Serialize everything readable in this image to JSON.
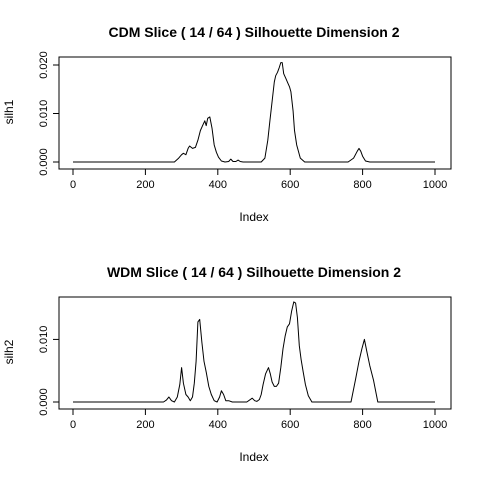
{
  "chart_data": [
    {
      "type": "line",
      "title": "CDM Slice ( 14 / 64 )  Silhouette Dimension 2",
      "xlabel": "Index",
      "ylabel": "silh1",
      "xlim": [
        0,
        1000
      ],
      "ylim": [
        0,
        0.02
      ],
      "xticks": [
        0,
        200,
        400,
        600,
        800,
        1000
      ],
      "yticks": [
        0.0,
        0.01,
        0.02
      ],
      "ytick_labels": [
        "0.000",
        "0.010",
        "0.020"
      ],
      "grid": false,
      "series": [
        {
          "x": [
            0,
            240,
            280,
            292,
            300,
            305,
            312,
            318,
            322,
            330,
            338,
            345,
            352,
            358,
            364,
            368,
            372,
            378,
            384,
            390,
            396,
            402,
            410,
            420,
            430,
            436,
            442,
            450,
            456,
            462,
            470,
            500,
            520,
            530,
            538,
            544,
            550,
            556,
            560,
            565,
            570,
            574,
            578,
            582,
            588,
            594,
            598,
            602,
            608,
            612,
            618,
            628,
            640,
            680,
            760,
            775,
            785,
            790,
            795,
            800,
            808,
            820,
            1000
          ],
          "y": [
            0,
            0,
            0,
            0.0008,
            0.0015,
            0.0018,
            0.0015,
            0.0028,
            0.0033,
            0.0028,
            0.003,
            0.0045,
            0.0065,
            0.0075,
            0.0085,
            0.0075,
            0.009,
            0.0093,
            0.007,
            0.0035,
            0.002,
            0.001,
            0.0002,
            0,
            0.0001,
            0.0006,
            0.0001,
            0.0001,
            0.0004,
            0.0001,
            0,
            0,
            0,
            0.0008,
            0.0045,
            0.0085,
            0.0125,
            0.0165,
            0.0178,
            0.0185,
            0.0195,
            0.0205,
            0.0205,
            0.0182,
            0.0172,
            0.0162,
            0.0155,
            0.0145,
            0.0105,
            0.0065,
            0.0035,
            0.0008,
            0,
            0,
            0,
            0.0008,
            0.0022,
            0.0028,
            0.0022,
            0.0012,
            0.0002,
            0,
            0
          ]
        }
      ]
    },
    {
      "type": "line",
      "title": "WDM Slice ( 14 / 64 )  Silhouette Dimension 2",
      "xlabel": "Index",
      "ylabel": "silh2",
      "xlim": [
        0,
        1000
      ],
      "ylim": [
        0,
        0.0155
      ],
      "xticks": [
        0,
        200,
        400,
        600,
        800,
        1000
      ],
      "yticks": [
        0.0,
        0.01
      ],
      "ytick_labels": [
        "0.000",
        "0.010"
      ],
      "grid": false,
      "series": [
        {
          "x": [
            0,
            250,
            258,
            265,
            272,
            280,
            288,
            295,
            300,
            305,
            312,
            318,
            324,
            330,
            335,
            340,
            345,
            350,
            356,
            362,
            368,
            375,
            382,
            390,
            398,
            405,
            410,
            416,
            422,
            430,
            440,
            480,
            495,
            502,
            508,
            515,
            520,
            525,
            532,
            540,
            545,
            550,
            556,
            562,
            568,
            574,
            580,
            586,
            592,
            598,
            604,
            610,
            615,
            620,
            625,
            630,
            636,
            642,
            650,
            660,
            700,
            768,
            780,
            790,
            798,
            805,
            812,
            820,
            830,
            842,
            860,
            1000
          ],
          "y": [
            0,
            0,
            0.0003,
            0.0008,
            0.0002,
            0,
            0.0008,
            0.0028,
            0.0055,
            0.003,
            0.0012,
            0.0008,
            0.0002,
            0.0008,
            0.003,
            0.0065,
            0.0128,
            0.0132,
            0.0095,
            0.0065,
            0.0048,
            0.0025,
            0.0012,
            0.0002,
            0,
            0.0008,
            0.0018,
            0.0012,
            0.0002,
            0.0002,
            0,
            0,
            0.0006,
            0.0002,
            0.0001,
            0.0004,
            0.0012,
            0.0028,
            0.0045,
            0.0055,
            0.0045,
            0.0032,
            0.0025,
            0.0025,
            0.003,
            0.0055,
            0.0085,
            0.0105,
            0.012,
            0.0125,
            0.0145,
            0.016,
            0.0158,
            0.0135,
            0.009,
            0.0068,
            0.0048,
            0.0028,
            0.001,
            0,
            0,
            0,
            0.0035,
            0.0065,
            0.0085,
            0.01,
            0.008,
            0.0058,
            0.0035,
            0,
            0,
            0
          ]
        }
      ]
    }
  ]
}
